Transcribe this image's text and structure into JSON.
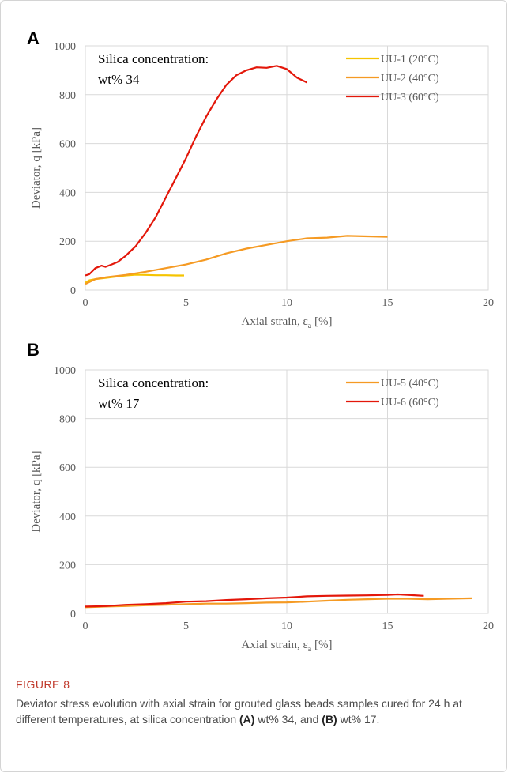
{
  "figure": {
    "label": "FIGURE 8",
    "caption_text_1": "Deviator stress evolution with axial strain for grouted glass beads samples cured for 24 h at different temperatures, at silica concentration ",
    "caption_bold_a": "(A)",
    "caption_text_2": " wt% 34, and ",
    "caption_bold_b": "(B)",
    "caption_text_3": " wt% 17."
  },
  "chart_data": [
    {
      "panel": "A",
      "type": "line",
      "annotation_line1": "Silica concentration:",
      "annotation_line2": "wt% 34",
      "xlabel_main": "Axial strain, ε",
      "xlabel_sub": "a",
      "xlabel_tail": " [%]",
      "ylabel": "Deviator, q [kPa]",
      "xlim": [
        0,
        20
      ],
      "ylim": [
        0,
        1000
      ],
      "xticks": [
        "0",
        "5",
        "10",
        "15",
        "20"
      ],
      "yticks": [
        "0",
        "200",
        "400",
        "600",
        "800",
        "1000"
      ],
      "grid": true,
      "legend_position": "top-right",
      "series": [
        {
          "name": "UU-1 (20°C)",
          "color": "#f5c400",
          "x": [
            0,
            0.2,
            0.5,
            1.0,
            1.5,
            2.0,
            2.5,
            3.0,
            3.5,
            4.0,
            4.5,
            4.9
          ],
          "y": [
            30,
            40,
            45,
            50,
            55,
            60,
            63,
            62,
            61,
            61,
            60,
            60
          ]
        },
        {
          "name": "UU-2 (40°C)",
          "color": "#f59a23",
          "x": [
            0,
            0.5,
            1.0,
            2.0,
            3.0,
            4.0,
            5.0,
            6.0,
            7.0,
            8.0,
            9.0,
            10.0,
            11.0,
            12.0,
            13.0,
            14.0,
            15.0
          ],
          "y": [
            25,
            45,
            52,
            62,
            75,
            90,
            105,
            125,
            150,
            170,
            185,
            200,
            212,
            215,
            222,
            220,
            218
          ]
        },
        {
          "name": "UU-3 (60°C)",
          "color": "#e3170a",
          "x": [
            0,
            0.2,
            0.5,
            0.8,
            1.0,
            1.3,
            1.6,
            2.0,
            2.5,
            3.0,
            3.5,
            4.0,
            4.5,
            5.0,
            5.5,
            6.0,
            6.5,
            7.0,
            7.5,
            8.0,
            8.5,
            9.0,
            9.5,
            10.0,
            10.5,
            11.0
          ],
          "y": [
            60,
            65,
            90,
            100,
            95,
            105,
            115,
            140,
            180,
            235,
            300,
            380,
            460,
            540,
            630,
            710,
            780,
            840,
            880,
            900,
            912,
            910,
            918,
            905,
            870,
            850
          ]
        }
      ]
    },
    {
      "panel": "B",
      "type": "line",
      "annotation_line1": "Silica concentration:",
      "annotation_line2": "wt% 17",
      "xlabel_main": "Axial strain, ε",
      "xlabel_sub": "a",
      "xlabel_tail": " [%]",
      "ylabel": "Deviator, q [kPa]",
      "xlim": [
        0,
        20
      ],
      "ylim": [
        0,
        1000
      ],
      "xticks": [
        "0",
        "5",
        "10",
        "15",
        "20"
      ],
      "yticks": [
        "0",
        "200",
        "400",
        "600",
        "800",
        "1000"
      ],
      "grid": true,
      "legend_position": "top-right",
      "series": [
        {
          "name": "UU-5 (40°C)",
          "color": "#f59a23",
          "x": [
            0,
            1,
            2,
            3,
            4,
            5,
            6,
            7,
            8,
            9,
            10,
            11,
            12,
            13,
            14,
            15,
            16,
            17,
            18,
            19.2
          ],
          "y": [
            25,
            28,
            30,
            33,
            35,
            38,
            40,
            40,
            42,
            44,
            45,
            48,
            52,
            56,
            58,
            60,
            60,
            58,
            60,
            62
          ]
        },
        {
          "name": "UU-6 (60°C)",
          "color": "#e3170a",
          "x": [
            0,
            1,
            2,
            3,
            4,
            5,
            6,
            7,
            8,
            9,
            10,
            11,
            12,
            13,
            14,
            15,
            15.5,
            16,
            16.8
          ],
          "y": [
            28,
            30,
            35,
            38,
            42,
            48,
            50,
            55,
            58,
            62,
            65,
            70,
            72,
            73,
            74,
            76,
            78,
            76,
            72
          ]
        }
      ]
    }
  ]
}
